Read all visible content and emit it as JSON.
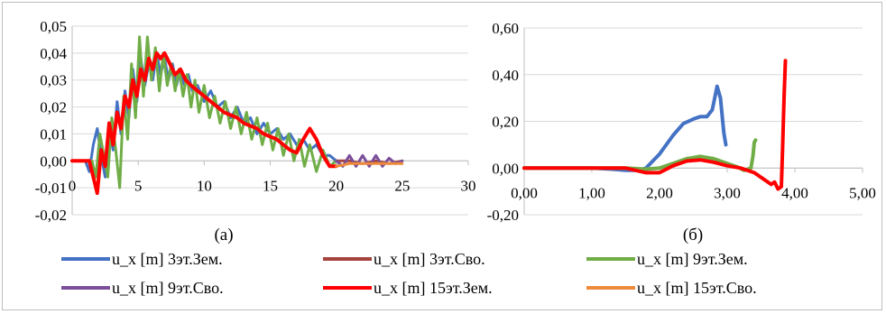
{
  "chart_data": [
    {
      "type": "line",
      "panel_label": "(а)",
      "xlim": [
        0,
        30
      ],
      "ylim": [
        -0.02,
        0.05
      ],
      "x_ticks": [
        "0",
        "5",
        "10",
        "15",
        "20",
        "25",
        "30"
      ],
      "y_ticks": [
        "-0,02",
        "-0,01",
        "0,00",
        "0,01",
        "0,02",
        "0,03",
        "0,04",
        "0,05"
      ],
      "grid": "horizontal",
      "series": [
        {
          "name": "u_x [m] 3эт.Зем.",
          "color": "#4472C4",
          "width": 3,
          "x": [
            0,
            1,
            1.3,
            1.6,
            1.9,
            2.2,
            2.5,
            2.8,
            3.1,
            3.4,
            3.7,
            4,
            4.3,
            4.6,
            4.9,
            5.2,
            5.5,
            5.8,
            6.1,
            6.4,
            6.7,
            7,
            7.3,
            7.6,
            7.9,
            8.2,
            8.5,
            8.8,
            9.1,
            9.5,
            10,
            10.5,
            11,
            11.5,
            12,
            12.5,
            13,
            13.5,
            14,
            14.5,
            15,
            15.5,
            16,
            16.5,
            17,
            17.5,
            18,
            18.5,
            19,
            19.5,
            20
          ],
          "y": [
            0,
            0,
            -0.004,
            0.006,
            0.012,
            0.002,
            -0.006,
            0.012,
            0.004,
            0.022,
            0.01,
            0.026,
            0.016,
            0.034,
            0.022,
            0.038,
            0.028,
            0.036,
            0.03,
            0.04,
            0.032,
            0.038,
            0.03,
            0.036,
            0.028,
            0.034,
            0.028,
            0.032,
            0.026,
            0.028,
            0.022,
            0.026,
            0.02,
            0.022,
            0.016,
            0.02,
            0.014,
            0.016,
            0.01,
            0.014,
            0.01,
            0.012,
            0.008,
            0.01,
            0.006,
            0.008,
            0.004,
            0.006,
            0.002,
            0.002,
            0
          ]
        },
        {
          "name": "u_x [m]  3эт.Сво.",
          "color": "#A5443E",
          "width": 3,
          "x": [
            20,
            21,
            22,
            23,
            24,
            25
          ],
          "y": [
            0,
            0,
            -0.001,
            0,
            -0.001,
            0
          ]
        },
        {
          "name": "u_x [m] 9эт.Зем.",
          "color": "#70AD47",
          "width": 3,
          "x": [
            0,
            1.5,
            1.8,
            2.1,
            2.4,
            2.7,
            3,
            3.3,
            3.6,
            3.9,
            4.2,
            4.5,
            4.8,
            5.1,
            5.4,
            5.7,
            6,
            6.3,
            6.6,
            6.9,
            7.2,
            7.5,
            7.8,
            8.1,
            8.4,
            8.7,
            9,
            9.3,
            9.6,
            10,
            10.4,
            10.8,
            11.2,
            11.6,
            12,
            12.4,
            12.8,
            13.2,
            13.6,
            14,
            14.4,
            14.8,
            15.2,
            15.6,
            16,
            16.4,
            16.8,
            17.2,
            17.6,
            18,
            18.5,
            19,
            19.5,
            20
          ],
          "y": [
            0,
            0,
            -0.006,
            0.01,
            0.002,
            -0.006,
            0.016,
            0.004,
            -0.01,
            0.024,
            0.008,
            0.036,
            0.016,
            0.046,
            0.024,
            0.046,
            0.03,
            0.042,
            0.026,
            0.04,
            0.028,
            0.036,
            0.026,
            0.034,
            0.024,
            0.032,
            0.02,
            0.03,
            0.018,
            0.028,
            0.016,
            0.024,
            0.014,
            0.022,
            0.012,
            0.02,
            0.01,
            0.018,
            0.008,
            0.016,
            0.006,
            0.014,
            0.004,
            0.012,
            0.002,
            0.01,
            0,
            0.008,
            -0.002,
            0.006,
            -0.004,
            0.004,
            -0.002,
            0
          ]
        },
        {
          "name": "u_x [m] 9эт.Сво.",
          "color": "#7B4E9B",
          "width": 3,
          "x": [
            20,
            20.5,
            21,
            21.5,
            22,
            22.5,
            23,
            23.5,
            24,
            24.5,
            25
          ],
          "y": [
            0,
            -0.002,
            0.002,
            -0.002,
            0.002,
            -0.002,
            0.002,
            -0.002,
            0.001,
            -0.001,
            0
          ]
        },
        {
          "name": "u_x [m] 15эт.Зем.",
          "color": "#FF0000",
          "width": 4,
          "x": [
            0,
            1.3,
            1.6,
            1.9,
            2.2,
            2.5,
            2.8,
            3.1,
            3.4,
            3.7,
            4,
            4.3,
            4.6,
            4.9,
            5.2,
            5.5,
            5.8,
            6.1,
            6.4,
            6.7,
            7,
            7.4,
            7.8,
            8.2,
            8.6,
            9,
            9.5,
            10,
            10.5,
            11,
            11.5,
            12,
            12.5,
            13,
            13.5,
            14,
            14.5,
            15,
            15.5,
            16,
            16.5,
            17,
            17.5,
            18,
            18.5,
            19,
            19.5,
            20
          ],
          "y": [
            0,
            0,
            -0.006,
            -0.012,
            0.004,
            -0.002,
            0.014,
            0.006,
            0.018,
            0.012,
            0.024,
            0.02,
            0.03,
            0.024,
            0.034,
            0.03,
            0.038,
            0.034,
            0.04,
            0.038,
            0.04,
            0.036,
            0.032,
            0.034,
            0.03,
            0.028,
            0.026,
            0.024,
            0.022,
            0.02,
            0.018,
            0.017,
            0.016,
            0.014,
            0.013,
            0.012,
            0.01,
            0.009,
            0.008,
            0.006,
            0.004,
            0.003,
            0.008,
            0.012,
            0.008,
            0.002,
            -0.002,
            -0.002
          ]
        },
        {
          "name": "u_x [m]  15эт.Сво.",
          "color": "#ED8B3A",
          "width": 3,
          "x": [
            20,
            21,
            22,
            23,
            24,
            25
          ],
          "y": [
            -0.002,
            -0.001,
            -0.001,
            -0.001,
            -0.001,
            -0.001
          ]
        }
      ]
    },
    {
      "type": "line",
      "panel_label": "(б)",
      "xlim": [
        0,
        5
      ],
      "ylim": [
        -0.2,
        0.6
      ],
      "x_ticks": [
        "0,00",
        "1,00",
        "2,00",
        "3,00",
        "4,00",
        "5,00"
      ],
      "y_ticks": [
        "-0,20",
        "0,00",
        "0,20",
        "0,40",
        "0,60"
      ],
      "grid": "horizontal",
      "series": [
        {
          "name": "u_x [m] 3эт.Зем.",
          "color": "#4472C4",
          "width": 4,
          "x": [
            0,
            0.5,
            1,
            1.3,
            1.5,
            1.7,
            1.8,
            2,
            2.2,
            2.35,
            2.5,
            2.6,
            2.7,
            2.78,
            2.85,
            2.9,
            2.95,
            2.98
          ],
          "y": [
            0,
            0,
            0,
            -0.005,
            -0.01,
            -0.01,
            0,
            0.06,
            0.14,
            0.19,
            0.21,
            0.22,
            0.22,
            0.25,
            0.35,
            0.3,
            0.15,
            0.1
          ]
        },
        {
          "name": "u_x [m] 9эт.Зем.",
          "color": "#70AD47",
          "width": 4,
          "x": [
            0,
            1,
            1.5,
            1.8,
            2,
            2.2,
            2.4,
            2.6,
            2.8,
            3,
            3.15,
            3.25,
            3.35,
            3.38,
            3.4,
            3.42
          ],
          "y": [
            0,
            0,
            0,
            -0.005,
            0,
            0.02,
            0.04,
            0.05,
            0.04,
            0.02,
            0.005,
            -0.01,
            0,
            0.05,
            0.11,
            0.12
          ]
        },
        {
          "name": "u_x [m] 15эт.Зем.",
          "color": "#FF0000",
          "width": 4,
          "x": [
            0,
            1,
            1.5,
            1.8,
            2,
            2.2,
            2.4,
            2.6,
            2.8,
            3,
            3.2,
            3.4,
            3.55,
            3.65,
            3.7,
            3.75,
            3.8,
            3.82,
            3.84,
            3.86
          ],
          "y": [
            0,
            0,
            0,
            -0.02,
            -0.02,
            0.01,
            0.03,
            0.035,
            0.025,
            0.01,
            0,
            -0.02,
            -0.05,
            -0.07,
            -0.06,
            -0.09,
            -0.08,
            0.1,
            0.3,
            0.46
          ]
        }
      ]
    }
  ],
  "legend": [
    {
      "label": "u_x [m] 3эт.Зем.",
      "color": "#4472C4"
    },
    {
      "label": "u_x [m]  3эт.Сво.",
      "color": "#A5443E"
    },
    {
      "label": "u_x [m] 9эт.Зем.",
      "color": "#70AD47"
    },
    {
      "label": "u_x [m] 9эт.Сво.",
      "color": "#7B4E9B"
    },
    {
      "label": "u_x [m] 15эт.Зем.",
      "color": "#FF0000"
    },
    {
      "label": "u_x [m]  15эт.Сво.",
      "color": "#ED8B3A"
    }
  ]
}
